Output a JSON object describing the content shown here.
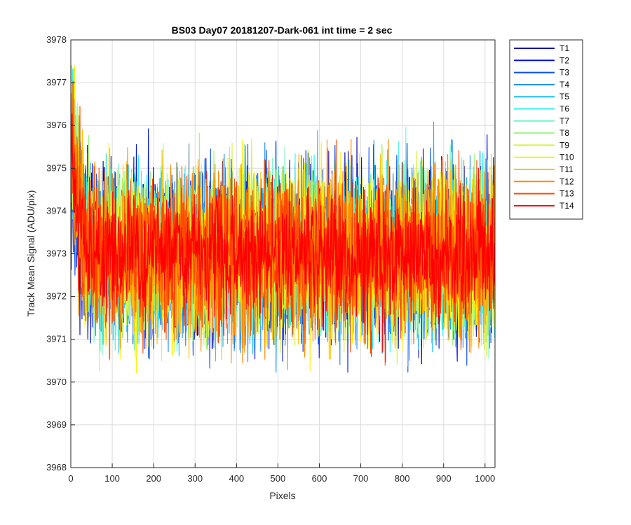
{
  "chart_data": {
    "type": "line",
    "title": "BS03 Day07 20181207-Dark-061 int time = 2 sec",
    "xlabel": "Pixels",
    "ylabel": "Track Mean Signal (ADU/pix)",
    "xlim": [
      0,
      1024
    ],
    "ylim": [
      3968,
      3978
    ],
    "x_ticks": [
      "0",
      "100",
      "200",
      "300",
      "400",
      "500",
      "600",
      "700",
      "800",
      "900",
      "1000"
    ],
    "y_ticks": [
      "3968",
      "3969",
      "3970",
      "3971",
      "3972",
      "3973",
      "3974",
      "3975",
      "3976",
      "3977",
      "3978"
    ],
    "grid": true,
    "legend_position": "outside-top-right",
    "n_points": 1024,
    "series": [
      {
        "name": "T1",
        "color": "#0000a8",
        "mean": 3973.0,
        "noise": 0.95,
        "start": 3974.6
      },
      {
        "name": "T2",
        "color": "#0011dd",
        "mean": 3973.0,
        "noise": 0.95,
        "start": 3975.0
      },
      {
        "name": "T3",
        "color": "#0a50f0",
        "mean": 3973.0,
        "noise": 0.95,
        "start": 3975.4
      },
      {
        "name": "T4",
        "color": "#1a8ef2",
        "mean": 3973.0,
        "noise": 0.95,
        "start": 3976.2
      },
      {
        "name": "T5",
        "color": "#15bff2",
        "mean": 3973.0,
        "noise": 0.95,
        "start": 3976.8
      },
      {
        "name": "T6",
        "color": "#2ff2f0",
        "mean": 3973.0,
        "noise": 0.95,
        "start": 3977.3
      },
      {
        "name": "T7",
        "color": "#72f6c4",
        "mean": 3973.0,
        "noise": 0.95,
        "start": 3976.6
      },
      {
        "name": "T8",
        "color": "#9af87f",
        "mean": 3973.0,
        "noise": 0.95,
        "start": 3976.0
      },
      {
        "name": "T9",
        "color": "#d6f440",
        "mean": 3973.0,
        "noise": 0.95,
        "start": 3975.6
      },
      {
        "name": "T10",
        "color": "#fff000",
        "mean": 3973.0,
        "noise": 0.95,
        "start": 3977.1
      },
      {
        "name": "T11",
        "color": "#ffc000",
        "mean": 3973.0,
        "noise": 0.95,
        "start": 3976.4
      },
      {
        "name": "T12",
        "color": "#ff8a00",
        "mean": 3973.0,
        "noise": 0.95,
        "start": 3976.0
      },
      {
        "name": "T13",
        "color": "#ff4a00",
        "mean": 3973.0,
        "noise": 0.95,
        "start": 3976.6
      },
      {
        "name": "T14",
        "color": "#ff0000",
        "mean": 3973.0,
        "noise": 0.75,
        "start": 3975.5
      }
    ]
  }
}
